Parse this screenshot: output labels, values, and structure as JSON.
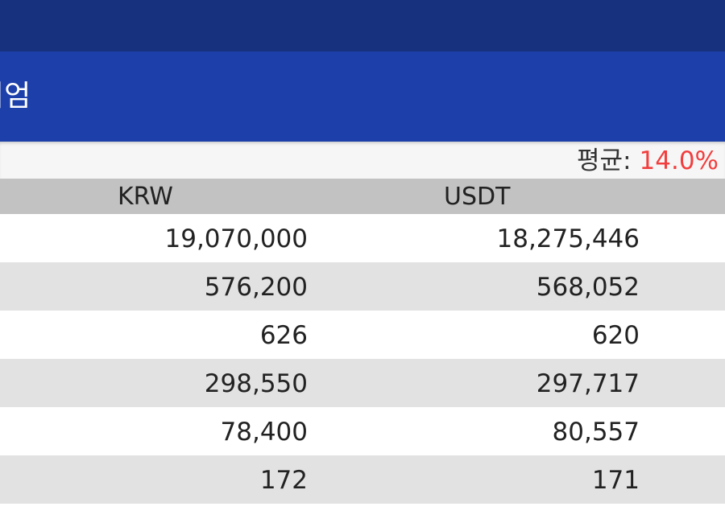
{
  "app": {
    "title_partial": "미엄"
  },
  "average": {
    "label": "평균:",
    "value": "14.0%",
    "value_color": "#f23e3e"
  },
  "colors": {
    "statusbar": "#17317f",
    "appbar": "#1c3faa",
    "header_bg": "#c2c2c2",
    "row_alt_bg": "#e2e2e2"
  },
  "table": {
    "headers": [
      "KRW",
      "USDT"
    ],
    "rows": [
      {
        "krw": "19,070,000",
        "usdt": "18,275,446"
      },
      {
        "krw": "576,200",
        "usdt": "568,052"
      },
      {
        "krw": "626",
        "usdt": "620"
      },
      {
        "krw": "298,550",
        "usdt": "297,717"
      },
      {
        "krw": "78,400",
        "usdt": "80,557"
      },
      {
        "krw": "172",
        "usdt": "171"
      }
    ]
  }
}
